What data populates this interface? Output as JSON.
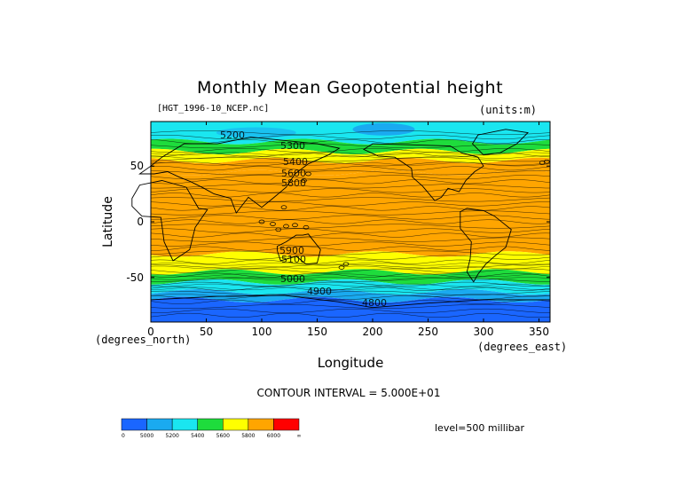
{
  "title": "Monthly Mean Geopotential height",
  "file_label": "[HGT_1996-10_NCEP.nc]",
  "units_label": "(units:m)",
  "ylabel": "Latitude",
  "xlabel": "Longitude",
  "x_unit_label": "(degrees_north)",
  "y_unit_label": "(degrees_east)",
  "contour_interval": "CONTOUR INTERVAL = 5.000E+01",
  "level": "level=500 millibar",
  "colors": {
    "c4800": "#1a66ff",
    "c5000": "#1aaaf0",
    "c5200": "#1ae6f0",
    "c5400": "#1edc3c",
    "c5600": "#ffff00",
    "c5800": "#ffa500",
    "c6000": "#ff0000"
  },
  "chart_data": {
    "type": "heatmap",
    "title": "Monthly Mean Geopotential height",
    "xlabel": "Longitude",
    "ylabel": "Latitude",
    "xlim": [
      0,
      360
    ],
    "ylim": [
      -90,
      90
    ],
    "xticks": [
      0,
      50,
      100,
      150,
      200,
      250,
      300,
      350
    ],
    "yticks": [
      -50,
      0,
      50
    ],
    "contour_labels": [
      "5200",
      "5300",
      "5400",
      "5600",
      "5800",
      "5900",
      "4800",
      "4900",
      "5000",
      "5100"
    ],
    "bands": [
      {
        "lat_from": 90,
        "lat_to": 72,
        "level": 5200
      },
      {
        "lat_from": 72,
        "lat_to": 63,
        "level": 5400
      },
      {
        "lat_from": 63,
        "lat_to": 55,
        "level": 5600
      },
      {
        "lat_from": 55,
        "lat_to": 44,
        "level": 5800
      },
      {
        "lat_from": 44,
        "lat_to": -29,
        "level": 5800
      },
      {
        "lat_from": -29,
        "lat_to": -45,
        "level": 5600
      },
      {
        "lat_from": -45,
        "lat_to": -54,
        "level": 5400
      },
      {
        "lat_from": -54,
        "lat_to": -63,
        "level": 5200
      },
      {
        "lat_from": -63,
        "lat_to": -70,
        "level": 5000
      },
      {
        "lat_from": -70,
        "lat_to": -90,
        "level": 4800
      }
    ],
    "colorbar": {
      "levels": [
        "0",
        "5000",
        "5200",
        "5400",
        "5600",
        "5800",
        "6000",
        "∞"
      ],
      "colors": [
        "#1a66ff",
        "#1aaaf0",
        "#1ae6f0",
        "#1edc3c",
        "#ffff00",
        "#ffa500",
        "#ff0000"
      ]
    }
  }
}
